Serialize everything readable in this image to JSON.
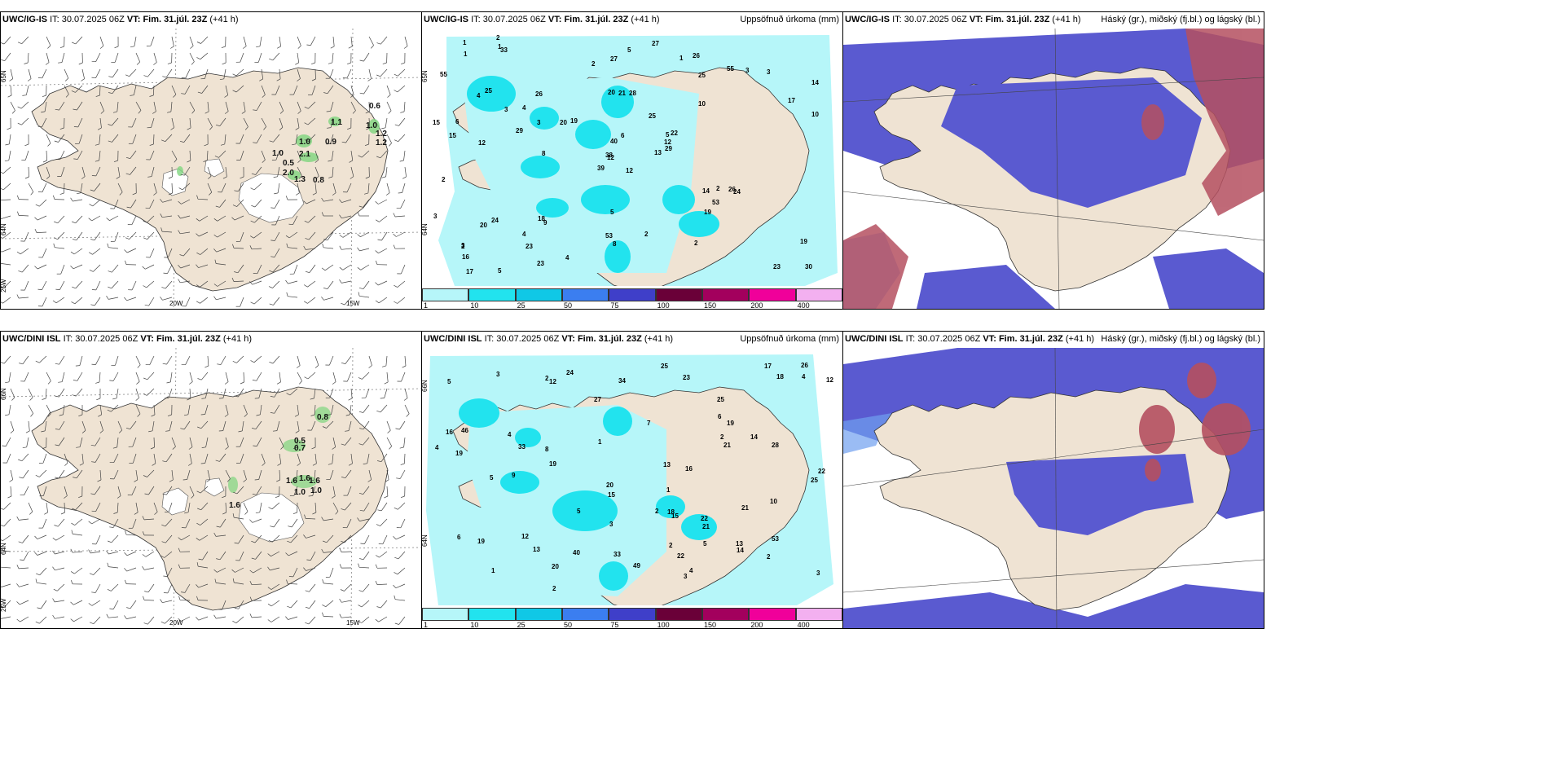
{
  "colors": {
    "land": "#efe3d3",
    "precip_light": "#b6f6f9",
    "precip_cyan": "#22e3ee",
    "cloud_high": "#b55060",
    "cloud_mid": "#5a5ad0",
    "cloud_low": "#6fa0ef"
  },
  "panels": [
    {
      "id": "top-wind",
      "model": "UWC/IG-IS",
      "it_label": "IT:",
      "it_value": "30.07.2025 06Z",
      "vt_label": "VT:",
      "vt_value": "Fim. 31.júl. 23Z",
      "lead": "(+41 h)",
      "right_title": "",
      "lat_labels": [
        "65N",
        "64N",
        "25W"
      ],
      "lon_labels": [
        "20W",
        "15W"
      ],
      "gusts": [
        "1.1",
        "0.6",
        "1.0",
        "1.2",
        "1.2",
        "1.0",
        "0.9",
        "1.0",
        "2.1",
        "0.5",
        "2.0",
        "1.3",
        "0.8"
      ]
    },
    {
      "id": "top-precip",
      "model": "UWC/IG-IS",
      "it_label": "IT:",
      "it_value": "30.07.2025 06Z",
      "vt_label": "VT:",
      "vt_value": "Fim. 31.júl. 23Z",
      "lead": "(+41 h)",
      "right_title": "Uppsöfnuð úrkoma (mm)",
      "lat_labels": [
        "65N",
        "64N"
      ],
      "values": [
        "12",
        "4",
        "12",
        "3",
        "5",
        "9",
        "26",
        "28",
        "25",
        "13",
        "33",
        "30",
        "12",
        "14",
        "39",
        "10",
        "5",
        "20",
        "25",
        "24",
        "19",
        "16",
        "23",
        "21",
        "22",
        "24",
        "25",
        "27",
        "15",
        "14",
        "10",
        "38",
        "53",
        "40",
        "26",
        "55",
        "18",
        "23",
        "19",
        "26",
        "27",
        "20",
        "29",
        "19",
        "23",
        "15",
        "12",
        "17",
        "8",
        "29",
        "20",
        "17",
        "55",
        "53",
        "2",
        "4",
        "1",
        "1",
        "2",
        "3",
        "5",
        "8",
        "6",
        "4",
        "3",
        "2",
        "1",
        "2",
        "6",
        "3",
        "5",
        "4",
        "2",
        "3",
        "2",
        "1",
        "3",
        "2"
      ],
      "legend_ticks": [
        "1",
        "10",
        "25",
        "50",
        "75",
        "100",
        "150",
        "200",
        "400"
      ]
    },
    {
      "id": "top-cloud",
      "model": "UWC/IG-IS",
      "it_label": "IT:",
      "it_value": "30.07.2025 06Z",
      "vt_label": "VT:",
      "vt_value": "Fim. 31.júl. 23Z",
      "lead": "(+41 h)",
      "right_title": "Háský (gr.), miðský (fj.bl.) og lágský (bl.)"
    },
    {
      "id": "bottom-wind",
      "model": "UWC/DINI ISL",
      "it_label": "IT:",
      "it_value": "30.07.2025 06Z",
      "vt_label": "VT:",
      "vt_value": "Fim. 31.júl. 23Z",
      "lead": "(+41 h)",
      "right_title": "",
      "lat_labels": [
        "66N",
        "64N",
        "25W"
      ],
      "lon_labels": [
        "20W",
        "15W"
      ],
      "gusts": [
        "0.8",
        "0.5",
        "0.7",
        "1.6",
        "1.6",
        "1.6",
        "1.0",
        "1.0",
        "1.6"
      ]
    },
    {
      "id": "bottom-precip",
      "model": "UWC/DINI ISL",
      "it_label": "IT:",
      "it_value": "30.07.2025 06Z",
      "vt_label": "VT:",
      "vt_value": "Fim. 31.júl. 23Z",
      "lead": "(+41 h)",
      "right_title": "Uppsöfnuð úrkoma (mm)",
      "lat_labels": [
        "66N",
        "64N"
      ],
      "values": [
        "4",
        "12",
        "12",
        "4",
        "14",
        "22",
        "25",
        "19",
        "15",
        "13",
        "19",
        "16",
        "20",
        "18",
        "21",
        "17",
        "19",
        "18",
        "21",
        "28",
        "13",
        "15",
        "20",
        "14",
        "16",
        "19",
        "9",
        "33",
        "49",
        "27",
        "21",
        "26",
        "25",
        "40",
        "24",
        "33",
        "25",
        "46",
        "22",
        "22",
        "34",
        "13",
        "12",
        "53",
        "23",
        "10",
        "2",
        "3",
        "1",
        "4",
        "5",
        "7",
        "8",
        "6",
        "5",
        "3",
        "2",
        "1",
        "2",
        "6",
        "4",
        "3",
        "2",
        "5",
        "2",
        "1",
        "3",
        "2",
        "5"
      ],
      "legend_ticks": [
        "1",
        "10",
        "25",
        "50",
        "75",
        "100",
        "150",
        "200",
        "400"
      ]
    },
    {
      "id": "bottom-cloud",
      "model": "UWC/DINI ISL",
      "it_label": "IT:",
      "it_value": "30.07.2025 06Z",
      "vt_label": "VT:",
      "vt_value": "Fim. 31.júl. 23Z",
      "lead": "(+41 h)",
      "right_title": "Háský (gr.), miðský (fj.bl.) og lágský (bl.)"
    }
  ],
  "legend_colors": [
    "#b6f6f9",
    "#22e3ee",
    "#10c8e6",
    "#3b7ef0",
    "#3f3fc9",
    "#6a0038",
    "#a3005d",
    "#f0009a",
    "#f3b0f0"
  ]
}
